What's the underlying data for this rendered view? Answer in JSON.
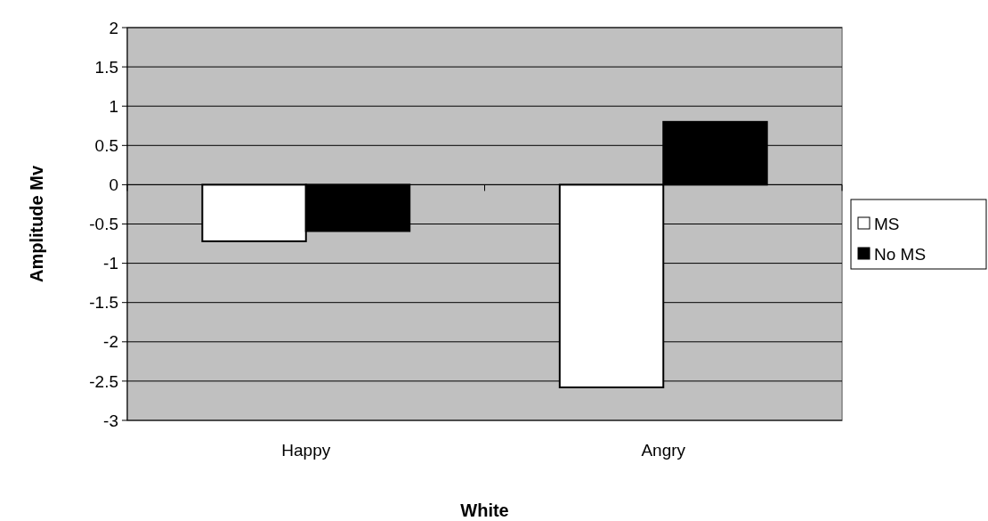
{
  "chart_data": {
    "type": "bar",
    "xlabel": "White",
    "ylabel": "Amplitude Mv",
    "categories": [
      "Happy",
      "Angry"
    ],
    "series": [
      {
        "name": "MS",
        "color": "#ffffff",
        "values": [
          -0.72,
          -2.58
        ]
      },
      {
        "name": "No MS",
        "color": "#000000",
        "values": [
          -0.59,
          0.8
        ]
      }
    ],
    "ylim": [
      -3,
      2
    ],
    "yticks": [
      -3,
      -2.5,
      -2,
      -1.5,
      -1,
      -0.5,
      0,
      0.5,
      1,
      1.5,
      2
    ],
    "grid": "y",
    "legend": "right"
  }
}
